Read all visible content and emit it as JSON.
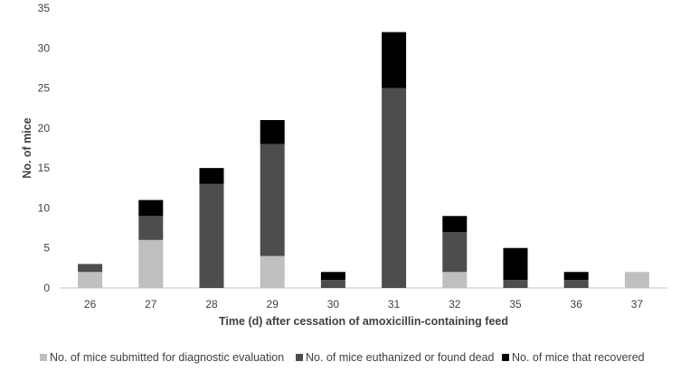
{
  "chart_data": {
    "type": "bar",
    "stacked": true,
    "title": "",
    "xlabel": "Time (d) after cessation of amoxicillin-containing feed",
    "ylabel": "No. of mice",
    "ylim": [
      0,
      35
    ],
    "yticks": [
      0,
      5,
      10,
      15,
      20,
      25,
      30,
      35
    ],
    "grid": false,
    "legend_position": "bottom",
    "categories": [
      "26",
      "27",
      "28",
      "29",
      "30",
      "31",
      "32",
      "35",
      "36",
      "37"
    ],
    "series": [
      {
        "name": "No. of mice submitted for diagnostic evaluation",
        "color": "#bfbfbf",
        "values": [
          2,
          6,
          0,
          4,
          0,
          0,
          2,
          0,
          0,
          2
        ]
      },
      {
        "name": "No. of mice euthanized or found dead",
        "color": "#4d4d4d",
        "values": [
          1,
          3,
          13,
          14,
          1,
          25,
          5,
          1,
          1,
          0
        ]
      },
      {
        "name": "No. of mice that recovered",
        "color": "#000000",
        "values": [
          0,
          2,
          2,
          3,
          1,
          7,
          2,
          4,
          1,
          0
        ]
      }
    ]
  }
}
